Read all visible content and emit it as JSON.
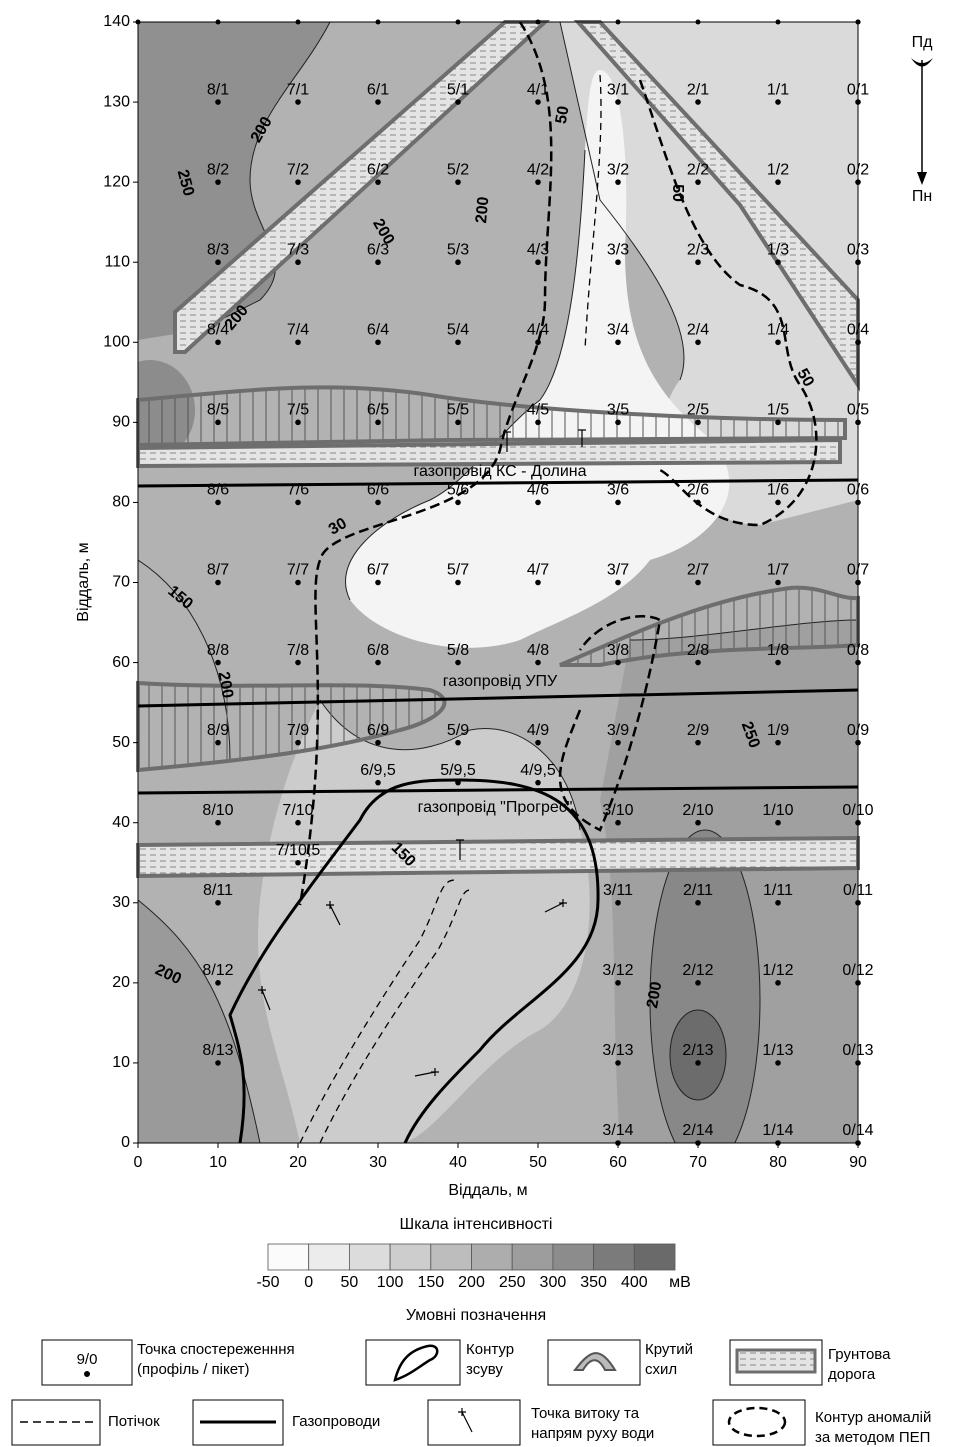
{
  "map": {
    "x_label": "Віддаль, м",
    "y_label": "Віддаль, м",
    "xlim": [
      0,
      90
    ],
    "ylim": [
      0,
      140
    ],
    "xticks": [
      0,
      10,
      20,
      30,
      40,
      50,
      60,
      70,
      80,
      90
    ],
    "yticks": [
      0,
      10,
      20,
      30,
      40,
      50,
      60,
      70,
      80,
      90,
      100,
      110,
      120,
      130,
      140
    ],
    "compass": {
      "top": "Пд",
      "bottom": "Пн"
    },
    "pipelines": [
      "газопровід КС - Долина",
      "газопровід УПУ",
      "газопровід \"Прогрес\""
    ],
    "contour_labels": [
      "200",
      "250",
      "50",
      "50",
      "200",
      "200",
      "200",
      "50",
      "30",
      "150",
      "200",
      "250",
      "150",
      "200",
      "200"
    ],
    "points": [
      {
        "label": "8/1",
        "x": 10,
        "y": 130
      },
      {
        "label": "7/1",
        "x": 20,
        "y": 130
      },
      {
        "label": "6/1",
        "x": 30,
        "y": 130
      },
      {
        "label": "5/1",
        "x": 40,
        "y": 130
      },
      {
        "label": "4/1",
        "x": 50,
        "y": 130
      },
      {
        "label": "3/1",
        "x": 60,
        "y": 130
      },
      {
        "label": "2/1",
        "x": 70,
        "y": 130
      },
      {
        "label": "1/1",
        "x": 80,
        "y": 130
      },
      {
        "label": "0/1",
        "x": 90,
        "y": 130
      },
      {
        "label": "8/2",
        "x": 10,
        "y": 120
      },
      {
        "label": "7/2",
        "x": 20,
        "y": 120
      },
      {
        "label": "6/2",
        "x": 30,
        "y": 120
      },
      {
        "label": "5/2",
        "x": 40,
        "y": 120
      },
      {
        "label": "4/2",
        "x": 50,
        "y": 120
      },
      {
        "label": "3/2",
        "x": 60,
        "y": 120
      },
      {
        "label": "2/2",
        "x": 70,
        "y": 120
      },
      {
        "label": "1/2",
        "x": 80,
        "y": 120
      },
      {
        "label": "0/2",
        "x": 90,
        "y": 120
      },
      {
        "label": "8/3",
        "x": 10,
        "y": 110
      },
      {
        "label": "7/3",
        "x": 20,
        "y": 110
      },
      {
        "label": "6/3",
        "x": 30,
        "y": 110
      },
      {
        "label": "5/3",
        "x": 40,
        "y": 110
      },
      {
        "label": "4/3",
        "x": 50,
        "y": 110
      },
      {
        "label": "3/3",
        "x": 60,
        "y": 110
      },
      {
        "label": "2/3",
        "x": 70,
        "y": 110
      },
      {
        "label": "1/3",
        "x": 80,
        "y": 110
      },
      {
        "label": "0/3",
        "x": 90,
        "y": 110
      },
      {
        "label": "8/4",
        "x": 10,
        "y": 100
      },
      {
        "label": "7/4",
        "x": 20,
        "y": 100
      },
      {
        "label": "6/4",
        "x": 30,
        "y": 100
      },
      {
        "label": "5/4",
        "x": 40,
        "y": 100
      },
      {
        "label": "4/4",
        "x": 50,
        "y": 100
      },
      {
        "label": "3/4",
        "x": 60,
        "y": 100
      },
      {
        "label": "2/4",
        "x": 70,
        "y": 100
      },
      {
        "label": "1/4",
        "x": 80,
        "y": 100
      },
      {
        "label": "0/4",
        "x": 90,
        "y": 100
      },
      {
        "label": "8/5",
        "x": 10,
        "y": 90
      },
      {
        "label": "7/5",
        "x": 20,
        "y": 90
      },
      {
        "label": "6/5",
        "x": 30,
        "y": 90
      },
      {
        "label": "5/5",
        "x": 40,
        "y": 90
      },
      {
        "label": "4/5",
        "x": 50,
        "y": 90
      },
      {
        "label": "3/5",
        "x": 60,
        "y": 90
      },
      {
        "label": "2/5",
        "x": 70,
        "y": 90
      },
      {
        "label": "1/5",
        "x": 80,
        "y": 90
      },
      {
        "label": "0/5",
        "x": 90,
        "y": 90
      },
      {
        "label": "8/6",
        "x": 10,
        "y": 80
      },
      {
        "label": "7/6",
        "x": 20,
        "y": 80
      },
      {
        "label": "6/6",
        "x": 30,
        "y": 80
      },
      {
        "label": "5/6",
        "x": 40,
        "y": 80
      },
      {
        "label": "4/6",
        "x": 50,
        "y": 80
      },
      {
        "label": "3/6",
        "x": 60,
        "y": 80
      },
      {
        "label": "2/6",
        "x": 70,
        "y": 80
      },
      {
        "label": "1/6",
        "x": 80,
        "y": 80
      },
      {
        "label": "0/6",
        "x": 90,
        "y": 80
      },
      {
        "label": "8/7",
        "x": 10,
        "y": 70
      },
      {
        "label": "7/7",
        "x": 20,
        "y": 70
      },
      {
        "label": "6/7",
        "x": 30,
        "y": 70
      },
      {
        "label": "5/7",
        "x": 40,
        "y": 70
      },
      {
        "label": "4/7",
        "x": 50,
        "y": 70
      },
      {
        "label": "3/7",
        "x": 60,
        "y": 70
      },
      {
        "label": "2/7",
        "x": 70,
        "y": 70
      },
      {
        "label": "1/7",
        "x": 80,
        "y": 70
      },
      {
        "label": "0/7",
        "x": 90,
        "y": 70
      },
      {
        "label": "8/8",
        "x": 10,
        "y": 60
      },
      {
        "label": "7/8",
        "x": 20,
        "y": 60
      },
      {
        "label": "6/8",
        "x": 30,
        "y": 60
      },
      {
        "label": "5/8",
        "x": 40,
        "y": 60
      },
      {
        "label": "4/8",
        "x": 50,
        "y": 60
      },
      {
        "label": "3/8",
        "x": 60,
        "y": 60
      },
      {
        "label": "2/8",
        "x": 70,
        "y": 60
      },
      {
        "label": "1/8",
        "x": 80,
        "y": 60
      },
      {
        "label": "0/8",
        "x": 90,
        "y": 60
      },
      {
        "label": "8/9",
        "x": 10,
        "y": 50
      },
      {
        "label": "7/9",
        "x": 20,
        "y": 50
      },
      {
        "label": "6/9",
        "x": 30,
        "y": 50
      },
      {
        "label": "5/9",
        "x": 40,
        "y": 50
      },
      {
        "label": "4/9",
        "x": 50,
        "y": 50
      },
      {
        "label": "3/9",
        "x": 60,
        "y": 50
      },
      {
        "label": "2/9",
        "x": 70,
        "y": 50
      },
      {
        "label": "1/9",
        "x": 80,
        "y": 50
      },
      {
        "label": "0/9",
        "x": 90,
        "y": 50
      },
      {
        "label": "6/9,5",
        "x": 30,
        "y": 45
      },
      {
        "label": "5/9,5",
        "x": 40,
        "y": 45
      },
      {
        "label": "4/9,5",
        "x": 50,
        "y": 45
      },
      {
        "label": "8/10",
        "x": 10,
        "y": 40
      },
      {
        "label": "7/10",
        "x": 20,
        "y": 40
      },
      {
        "label": "3/10",
        "x": 60,
        "y": 40
      },
      {
        "label": "2/10",
        "x": 70,
        "y": 40
      },
      {
        "label": "1/10",
        "x": 80,
        "y": 40
      },
      {
        "label": "0/10",
        "x": 90,
        "y": 40
      },
      {
        "label": "7/10,5",
        "x": 20,
        "y": 35
      },
      {
        "label": "8/11",
        "x": 10,
        "y": 30
      },
      {
        "label": "3/11",
        "x": 60,
        "y": 30
      },
      {
        "label": "2/11",
        "x": 70,
        "y": 30
      },
      {
        "label": "1/11",
        "x": 80,
        "y": 30
      },
      {
        "label": "0/11",
        "x": 90,
        "y": 30
      },
      {
        "label": "8/12",
        "x": 10,
        "y": 20
      },
      {
        "label": "3/12",
        "x": 60,
        "y": 20
      },
      {
        "label": "2/12",
        "x": 70,
        "y": 20
      },
      {
        "label": "1/12",
        "x": 80,
        "y": 20
      },
      {
        "label": "0/12",
        "x": 90,
        "y": 20
      },
      {
        "label": "8/13",
        "x": 10,
        "y": 10
      },
      {
        "label": "3/13",
        "x": 60,
        "y": 10
      },
      {
        "label": "2/13",
        "x": 70,
        "y": 10
      },
      {
        "label": "1/13",
        "x": 80,
        "y": 10
      },
      {
        "label": "0/13",
        "x": 90,
        "y": 10
      },
      {
        "label": "3/14",
        "x": 60,
        "y": 0
      },
      {
        "label": "2/14",
        "x": 70,
        "y": 0
      },
      {
        "label": "1/14",
        "x": 80,
        "y": 0
      },
      {
        "label": "0/14",
        "x": 90,
        "y": 0
      }
    ]
  },
  "scale": {
    "title": "Шкала інтенсивності",
    "unit": "мВ",
    "values": [
      -50,
      0,
      50,
      100,
      150,
      200,
      250,
      300,
      350,
      400
    ],
    "colors": [
      "#fbfbfb",
      "#ececec",
      "#dcdcdc",
      "#cdcdcd",
      "#bdbdbd",
      "#adadad",
      "#9d9d9d",
      "#8c8c8c",
      "#7b7b7b",
      "#6a6a6a"
    ]
  },
  "legend": {
    "title": "Умовні позначення",
    "sample": "9/0",
    "items": [
      {
        "lines": [
          "Точка спостереженння",
          "(профіль / пікет)"
        ]
      },
      {
        "lines": [
          "Контур",
          "зсуву"
        ]
      },
      {
        "lines": [
          "Крутий",
          "схил"
        ]
      },
      {
        "lines": [
          "Грунтова",
          "дорога"
        ]
      },
      {
        "lines": [
          "Потічок"
        ]
      },
      {
        "lines": [
          "Газопроводи"
        ]
      },
      {
        "lines": [
          "Точка витоку та",
          "напрям руху води"
        ]
      },
      {
        "lines": [
          "Контур аномалій",
          "за методом ПЕП"
        ]
      }
    ]
  }
}
